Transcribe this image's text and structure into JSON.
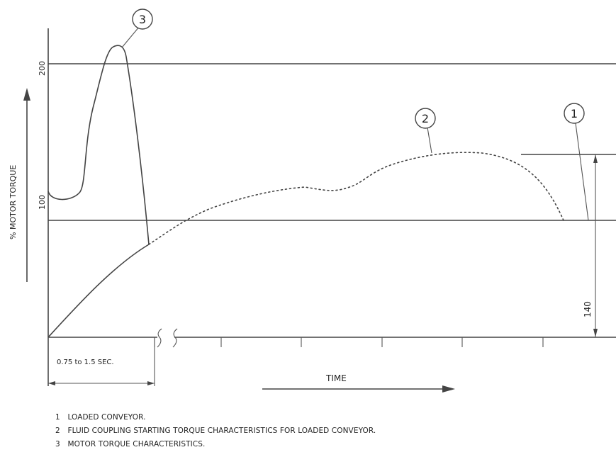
{
  "diagram": {
    "y_axis_label": "% MOTOR TORQUE",
    "y_ticks": [
      "200",
      "100"
    ],
    "x_axis_label": "TIME",
    "interval_label": "0.75 to 1.5 SEC.",
    "dimension_label": "140",
    "callouts": [
      "1",
      "2",
      "3"
    ]
  },
  "legend": [
    {
      "num": "1",
      "text": "LOADED CONVEYOR."
    },
    {
      "num": "2",
      "text": "FLUID COUPLING STARTING TORQUE CHARACTERISTICS FOR LOADED CONVEYOR."
    },
    {
      "num": "3",
      "text": "MOTOR TORQUE CHARACTERISTICS."
    }
  ]
}
